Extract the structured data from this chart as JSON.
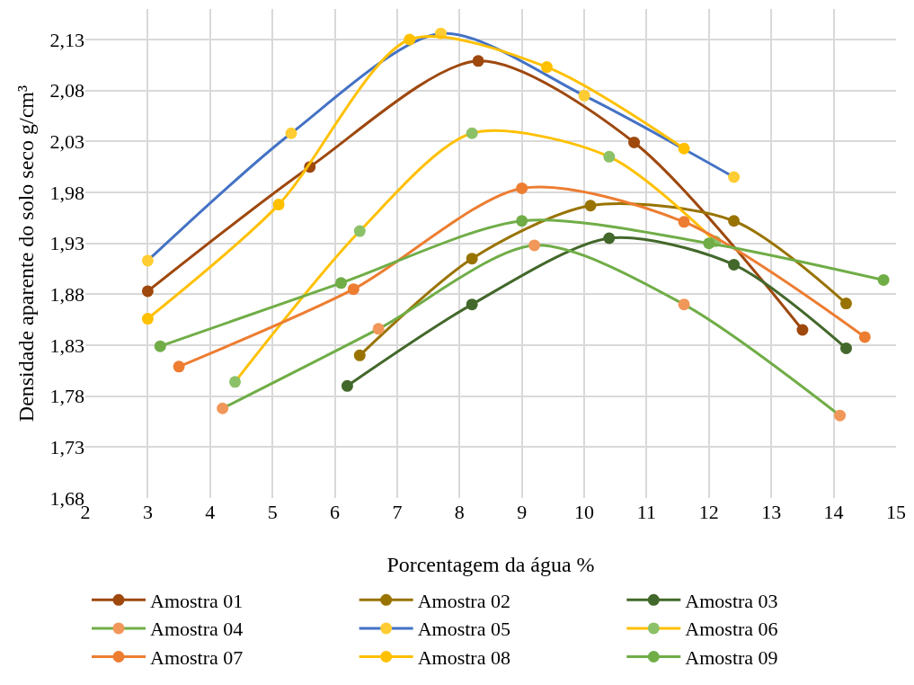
{
  "chart_data": {
    "type": "line",
    "xlabel": "Porcentagem da água %",
    "ylabel": "Densidade aparente do solo seco g/cm³",
    "xlim": [
      2,
      15
    ],
    "xticks": [
      2,
      3,
      4,
      5,
      6,
      7,
      8,
      9,
      10,
      11,
      12,
      13,
      14,
      15
    ],
    "ylim": [
      1.68,
      2.16
    ],
    "yticks": [
      {
        "value": 1.68,
        "label": "1,68"
      },
      {
        "value": 1.73,
        "label": "1,73"
      },
      {
        "value": 1.78,
        "label": "1,78"
      },
      {
        "value": 1.83,
        "label": "1,83"
      },
      {
        "value": 1.88,
        "label": "1,88"
      },
      {
        "value": 1.93,
        "label": "1,93"
      },
      {
        "value": 1.98,
        "label": "1,98"
      },
      {
        "value": 2.03,
        "label": "2,03"
      },
      {
        "value": 2.08,
        "label": "2,08"
      },
      {
        "value": 2.13,
        "label": "2,13"
      }
    ],
    "grid": true,
    "legend": "bottom",
    "marker": "circle",
    "line_style": "solid",
    "series": [
      {
        "name": "Amostra 01",
        "color": "#9e480e",
        "colors": [
          "#9e480e",
          "#9e480e",
          "#9e480e",
          "#9e480e",
          "#9e480e"
        ],
        "x": [
          3,
          5.6,
          8.3,
          10.8,
          13.5
        ],
        "values": [
          1.883,
          2.005,
          2.109,
          2.029,
          1.845
        ]
      },
      {
        "name": "Amostra 02",
        "color": "#997300",
        "colors": [
          "#997300",
          "#997300",
          "#997300",
          "#997300",
          "#997300"
        ],
        "x": [
          6.4,
          8.2,
          10.1,
          12.4,
          14.2
        ],
        "values": [
          1.82,
          1.915,
          1.967,
          1.952,
          1.871
        ]
      },
      {
        "name": "Amostra 03",
        "color": "#43682b",
        "colors": [
          "#43682b",
          "#43682b",
          "#43682b",
          "#43682b",
          "#43682b"
        ],
        "x": [
          6.2,
          8.2,
          10.4,
          12.4,
          14.2
        ],
        "values": [
          1.79,
          1.87,
          1.935,
          1.909,
          1.827
        ]
      },
      {
        "name": "Amostra 04",
        "color": "#70ad47",
        "colors": [
          "#f1975a",
          "#f1975a",
          "#f1975a",
          "#f1975a",
          "#f1975a"
        ],
        "x": [
          4.2,
          6.7,
          9.2,
          11.6,
          14.1
        ],
        "values": [
          1.768,
          1.846,
          1.928,
          1.87,
          1.761
        ]
      },
      {
        "name": "Amostra 05",
        "color": "#4472c4",
        "colors": [
          "#ffcd33",
          "#ffcd33",
          "#ffcd33",
          "#ffcd33",
          "#ffcd33"
        ],
        "x": [
          3,
          5.3,
          7.7,
          10,
          12.4
        ],
        "values": [
          1.913,
          2.038,
          2.136,
          2.075,
          1.995
        ]
      },
      {
        "name": "Amostra 06",
        "color": "#ffc000",
        "colors": [
          "#8cc168",
          "#8cc168",
          "#8cc168",
          "#8cc168",
          "#8cc168"
        ],
        "x": [
          4.4,
          6.4,
          8.2,
          10.4,
          12.1
        ],
        "values": [
          1.794,
          1.942,
          2.038,
          2.015,
          1.932
        ]
      },
      {
        "name": "Amostra 07",
        "color": "#ed7d31",
        "colors": [
          "#ed7d31",
          "#ed7d31",
          "#ed7d31",
          "#ed7d31",
          "#ed7d31"
        ],
        "x": [
          3.5,
          6.3,
          9.0,
          11.6,
          14.5
        ],
        "values": [
          1.809,
          1.885,
          1.984,
          1.951,
          1.838
        ]
      },
      {
        "name": "Amostra 08",
        "color": "#ffc000",
        "colors": [
          "#ffc000",
          "#ffc000",
          "#ffc000",
          "#ffc000",
          "#ffc000"
        ],
        "x": [
          3,
          5.1,
          7.2,
          9.4,
          11.6
        ],
        "values": [
          1.856,
          1.968,
          2.13,
          2.103,
          2.023
        ]
      },
      {
        "name": "Amostra 09",
        "color": "#70ad47",
        "colors": [
          "#70ad47",
          "#70ad47",
          "#70ad47",
          "#70ad47",
          "#70ad47"
        ],
        "x": [
          3.2,
          6.1,
          9.0,
          12.0,
          14.8
        ],
        "values": [
          1.829,
          1.891,
          1.952,
          1.93,
          1.894
        ]
      }
    ]
  }
}
